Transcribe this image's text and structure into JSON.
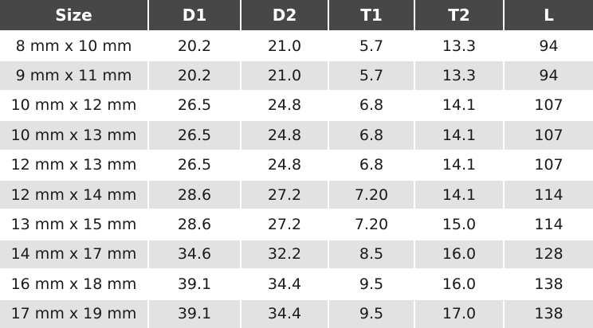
{
  "table": {
    "header": [
      "Size",
      "D1",
      "D2",
      "T1",
      "T2",
      "L"
    ],
    "rows": [
      [
        "8 mm x 10 mm",
        "20.2",
        "21.0",
        "5.7",
        "13.3",
        "94"
      ],
      [
        "9 mm x 11 mm",
        "20.2",
        "21.0",
        "5.7",
        "13.3",
        "94"
      ],
      [
        "10 mm x 12 mm",
        "26.5",
        "24.8",
        "6.8",
        "14.1",
        "107"
      ],
      [
        "10 mm x 13 mm",
        "26.5",
        "24.8",
        "6.8",
        "14.1",
        "107"
      ],
      [
        "12 mm x 13 mm",
        "26.5",
        "24.8",
        "6.8",
        "14.1",
        "107"
      ],
      [
        "12 mm x 14 mm",
        "28.6",
        "27.2",
        "7.20",
        "14.1",
        "114"
      ],
      [
        "13 mm x 15 mm",
        "28.6",
        "27.2",
        "7.20",
        "15.0",
        "114"
      ],
      [
        "14 mm x 17 mm",
        "34.6",
        "32.2",
        "8.5",
        "16.0",
        "128"
      ],
      [
        "16 mm x 18 mm",
        "39.1",
        "34.4",
        "9.5",
        "16.0",
        "138"
      ],
      [
        "17 mm x 19 mm",
        "39.1",
        "34.4",
        "9.5",
        "17.0",
        "138"
      ]
    ]
  }
}
